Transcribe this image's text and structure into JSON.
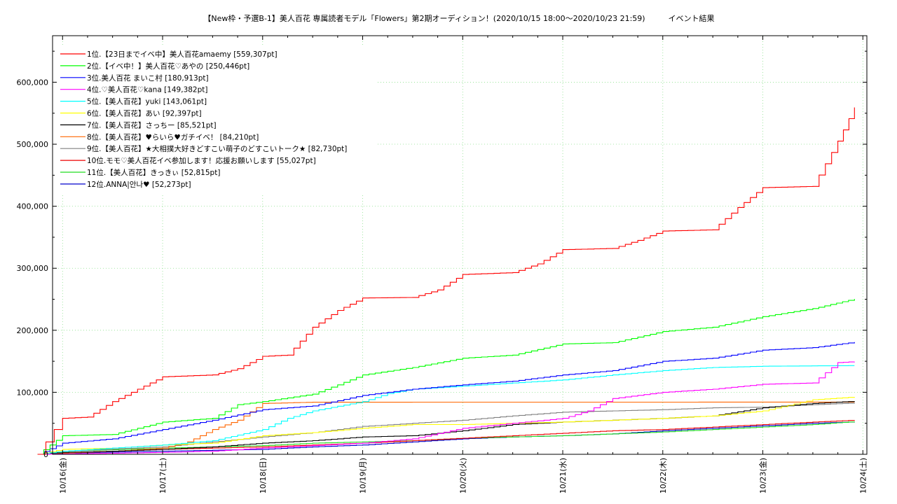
{
  "chart_data": {
    "type": "line",
    "title": "【New枠・予選B-1】美人百花 専属読者モデル「Flowers」第2期オーディション！(2020/10/15 18:00〜2020/10/23 21:59)　　　イベント結果",
    "xlabel": "",
    "ylabel": "",
    "x_ticks": [
      "10/16(金)",
      "10/17(土)",
      "10/18(日)",
      "10/19(月)",
      "10/20(火)",
      "10/21(水)",
      "10/22(木)",
      "10/23(金)",
      "10/24(土)"
    ],
    "x_range_days": [
      -0.1,
      8.04
    ],
    "y_ticks": [
      "0",
      "100,000",
      "200,000",
      "300,000",
      "400,000",
      "500,000",
      "600,000"
    ],
    "ylim": [
      0,
      675000
    ],
    "grid": true,
    "legend_position": "top-left",
    "series": [
      {
        "name": "1位.【23日までイベ中】美人百花amaemy [559,307pt]",
        "color": "#ff0000",
        "x": [
          "10/15 18:00",
          "10/15 20:00",
          "10/15 22:00",
          "10/16 0:00",
          "10/16 6:00",
          "10/16 12:00",
          "10/16 18:00",
          "10/17 0:00",
          "10/17 12:00",
          "10/17 18:00",
          "10/18 0:00",
          "10/18 6:00",
          "10/18 12:00",
          "10/18 18:00",
          "10/19 0:00",
          "10/19 12:00",
          "10/19 18:00",
          "10/20 0:00",
          "10/20 12:00",
          "10/20 18:00",
          "10/21 0:00",
          "10/21 12:00",
          "10/21 18:00",
          "10/22 0:00",
          "10/22 12:00",
          "10/22 18:00",
          "10/23 0:00",
          "10/23 12:00",
          "10/23 18:00",
          "10/23 21:59"
        ],
        "y": [
          0,
          20000,
          40000,
          58000,
          60000,
          85000,
          105000,
          125000,
          128000,
          138000,
          158000,
          160000,
          205000,
          232000,
          252000,
          253000,
          265000,
          290000,
          293000,
          307000,
          330000,
          332000,
          345000,
          360000,
          362000,
          398000,
          430000,
          432000,
          505000,
          559307
        ]
      },
      {
        "name": "2位.【イベ中！】美人百花♡あやの [250,446pt]",
        "color": "#00ff00",
        "x": [
          "10/15 18:00",
          "10/16 0:00",
          "10/16 12:00",
          "10/17 0:00",
          "10/17 12:00",
          "10/17 18:00",
          "10/18 0:00",
          "10/18 12:00",
          "10/18 18:00",
          "10/19 0:00",
          "10/19 12:00",
          "10/20 0:00",
          "10/20 12:00",
          "10/21 0:00",
          "10/21 12:00",
          "10/22 0:00",
          "10/22 12:00",
          "10/23 0:00",
          "10/23 12:00",
          "10/23 21:59"
        ],
        "y": [
          0,
          30000,
          32000,
          52000,
          58000,
          80000,
          85000,
          97000,
          112000,
          128000,
          140000,
          155000,
          160000,
          178000,
          180000,
          198000,
          205000,
          222000,
          235000,
          250446
        ]
      },
      {
        "name": "3位.美人百花 まいこ村 [180,913pt]",
        "color": "#0000ff",
        "x": [
          "10/15 18:00",
          "10/16 0:00",
          "10/16 12:00",
          "10/17 0:00",
          "10/17 12:00",
          "10/18 0:00",
          "10/18 12:00",
          "10/19 0:00",
          "10/19 12:00",
          "10/20 0:00",
          "10/20 12:00",
          "10/21 0:00",
          "10/21 12:00",
          "10/22 0:00",
          "10/22 12:00",
          "10/23 0:00",
          "10/23 12:00",
          "10/23 21:59"
        ],
        "y": [
          0,
          18000,
          25000,
          40000,
          55000,
          72000,
          78000,
          95000,
          105000,
          112000,
          118000,
          128000,
          135000,
          150000,
          155000,
          168000,
          172000,
          180913
        ]
      },
      {
        "name": "4位.♡美人百花♡kana [149,382pt]",
        "color": "#ff00ff",
        "x": [
          "10/15 18:00",
          "10/17 0:00",
          "10/17 12:00",
          "10/18 0:00",
          "10/18 12:00",
          "10/19 0:00",
          "10/19 12:00",
          "10/20 0:00",
          "10/20 12:00",
          "10/21 0:00",
          "10/21 6:00",
          "10/21 12:00",
          "10/22 0:00",
          "10/22 12:00",
          "10/23 0:00",
          "10/23 12:00",
          "10/23 18:00",
          "10/23 21:59"
        ],
        "y": [
          0,
          3000,
          5000,
          10000,
          14000,
          18000,
          25000,
          42000,
          50000,
          58000,
          70000,
          90000,
          100000,
          105000,
          113000,
          115000,
          148000,
          149382
        ]
      },
      {
        "name": "5位.【美人百花】yuki [143,061pt]",
        "color": "#00ffff",
        "x": [
          "10/15 18:00",
          "10/16 0:00",
          "10/16 12:00",
          "10/17 0:00",
          "10/17 12:00",
          "10/18 0:00",
          "10/18 6:00",
          "10/18 12:00",
          "10/19 0:00",
          "10/19 6:00",
          "10/19 12:00",
          "10/20 0:00",
          "10/20 12:00",
          "10/21 0:00",
          "10/21 12:00",
          "10/22 0:00",
          "10/22 12:00",
          "10/23 0:00",
          "10/23 21:59"
        ],
        "y": [
          0,
          5000,
          10000,
          15000,
          22000,
          40000,
          58000,
          70000,
          85000,
          98000,
          105000,
          110000,
          115000,
          120000,
          128000,
          135000,
          140000,
          142000,
          143061
        ]
      },
      {
        "name": "6位.【美人百花】あい [92,397pt]",
        "color": "#ffff00",
        "x": [
          "10/15 18:00",
          "10/16 0:00",
          "10/16 12:00",
          "10/17 0:00",
          "10/17 12:00",
          "10/18 0:00",
          "10/18 12:00",
          "10/19 0:00",
          "10/19 12:00",
          "10/20 0:00",
          "10/20 12:00",
          "10/21 0:00",
          "10/21 12:00",
          "10/22 0:00",
          "10/22 12:00",
          "10/23 0:00",
          "10/23 12:00",
          "10/23 21:59"
        ],
        "y": [
          0,
          8000,
          10000,
          15000,
          18000,
          30000,
          35000,
          42000,
          48000,
          48000,
          50000,
          52000,
          55000,
          58000,
          62000,
          70000,
          88000,
          92397
        ]
      },
      {
        "name": "7位.【美人百花】さっちー [85,521pt]",
        "color": "#000000",
        "x": [
          "10/15 18:00",
          "10/16 0:00",
          "10/16 12:00",
          "10/17 0:00",
          "10/17 12:00",
          "10/18 0:00",
          "10/18 12:00",
          "10/19 0:00",
          "10/19 12:00",
          "10/20 0:00",
          "10/20 12:00",
          "10/21 0:00",
          "10/21 12:00",
          "10/22 0:00",
          "10/22 12:00",
          "10/23 0:00",
          "10/23 12:00",
          "10/23 21:59"
        ],
        "y": [
          0,
          3000,
          5000,
          8000,
          12000,
          18000,
          22000,
          28000,
          30000,
          38000,
          48000,
          52000,
          55000,
          58000,
          62000,
          75000,
          82000,
          85521
        ]
      },
      {
        "name": "8位.【美人百花】♥らいら♥ガチイベ！ [84,210pt]",
        "color": "#ff6600",
        "x": [
          "10/15 18:00",
          "10/16 0:00",
          "10/16 12:00",
          "10/17 0:00",
          "10/17 6:00",
          "10/17 12:00",
          "10/17 18:00",
          "10/18 0:00",
          "10/18 12:00",
          "10/23 21:59"
        ],
        "y": [
          0,
          2000,
          5000,
          10000,
          20000,
          40000,
          55000,
          82000,
          84000,
          84210
        ]
      },
      {
        "name": "9位.【美人百花】★大相撲大好きどすこい萌子のどすこいトーク★ [82,730pt]",
        "color": "#808080",
        "x": [
          "10/15 18:00",
          "10/16 0:00",
          "10/17 0:00",
          "10/17 12:00",
          "10/18 0:00",
          "10/18 12:00",
          "10/19 0:00",
          "10/19 12:00",
          "10/20 0:00",
          "10/20 12:00",
          "10/21 0:00",
          "10/21 12:00",
          "10/22 0:00",
          "10/22 12:00",
          "10/23 0:00",
          "10/23 12:00",
          "10/23 21:59"
        ],
        "y": [
          0,
          5000,
          12000,
          20000,
          28000,
          35000,
          45000,
          50000,
          55000,
          62000,
          68000,
          70000,
          72000,
          75000,
          76000,
          80000,
          82730
        ]
      },
      {
        "name": "10位.モモ♡美人百花イベ参加します！応援お願いします [55,027pt]",
        "color": "#ee0000",
        "x": [
          "10/15 18:00",
          "10/16 0:00",
          "10/17 0:00",
          "10/18 0:00",
          "10/18 12:00",
          "10/19 0:00",
          "10/19 12:00",
          "10/20 0:00",
          "10/20 12:00",
          "10/21 0:00",
          "10/21 12:00",
          "10/22 0:00",
          "10/22 12:00",
          "10/23 0:00",
          "10/23 12:00",
          "10/23 21:59"
        ],
        "y": [
          0,
          2000,
          8000,
          12000,
          15000,
          18000,
          22000,
          26000,
          30000,
          34000,
          38000,
          40000,
          44000,
          48000,
          52000,
          55027
        ]
      },
      {
        "name": "11位.【美人百花】きっきぃ [52,815pt]",
        "color": "#22dd22",
        "x": [
          "10/15 18:00",
          "10/16 0:00",
          "10/17 0:00",
          "10/18 0:00",
          "10/18 12:00",
          "10/19 0:00",
          "10/19 12:00",
          "10/20 0:00",
          "10/20 12:00",
          "10/21 0:00",
          "10/21 12:00",
          "10/22 0:00",
          "10/22 12:00",
          "10/23 0:00",
          "10/23 12:00",
          "10/23 21:59"
        ],
        "y": [
          0,
          5000,
          10000,
          14000,
          18000,
          20000,
          22000,
          26000,
          28000,
          30000,
          33000,
          36000,
          40000,
          44000,
          48000,
          52815
        ]
      },
      {
        "name": "12位.ANNA|안나♥ [52,273pt]",
        "color": "#0000cc",
        "x": [
          "10/15 18:00",
          "10/16 0:00",
          "10/17 0:00",
          "10/18 0:00",
          "10/18 12:00",
          "10/19 0:00",
          "10/19 12:00",
          "10/20 0:00",
          "10/20 12:00",
          "10/21 0:00",
          "10/21 12:00",
          "10/22 0:00",
          "10/22 12:00",
          "10/23 0:00",
          "10/23 12:00",
          "10/23 21:59"
        ],
        "y": [
          0,
          2000,
          5000,
          8000,
          12000,
          15000,
          20000,
          25000,
          28000,
          30000,
          33000,
          38000,
          42000,
          46000,
          50000,
          52273
        ]
      }
    ]
  }
}
